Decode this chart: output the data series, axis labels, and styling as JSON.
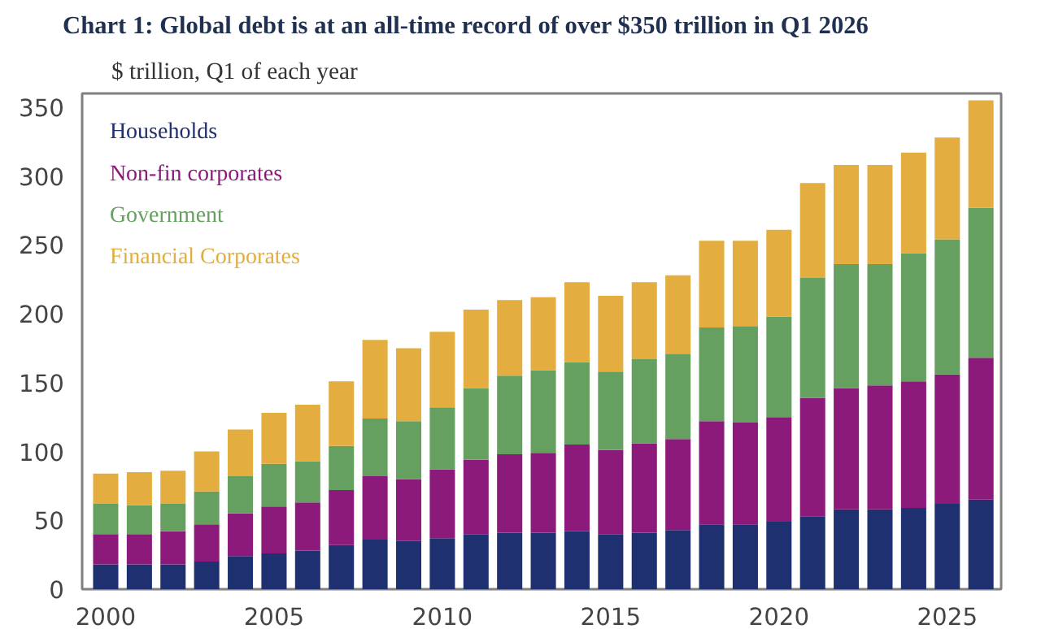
{
  "chart_data": {
    "type": "bar",
    "stacked": true,
    "title": "Chart 1: Global debt is at an all-time record of over $350 trillion in Q1 2026",
    "subtitle": "$ trillion, Q1 of each year",
    "x": [
      2000,
      2001,
      2002,
      2003,
      2004,
      2005,
      2006,
      2007,
      2008,
      2009,
      2010,
      2011,
      2012,
      2013,
      2014,
      2015,
      2016,
      2017,
      2018,
      2019,
      2020,
      2021,
      2022,
      2023,
      2024,
      2025,
      2026
    ],
    "series": [
      {
        "name": "Households",
        "color": "#1f3070",
        "values": [
          18,
          18,
          18,
          20,
          24,
          26,
          28,
          32,
          36,
          35,
          37,
          40,
          41,
          41,
          42,
          40,
          41,
          43,
          47,
          47,
          49,
          53,
          58,
          58,
          59,
          62,
          65
        ]
      },
      {
        "name": "Non-fin corporates",
        "color": "#8b1a7a",
        "values": [
          22,
          22,
          24,
          27,
          31,
          34,
          35,
          40,
          46,
          45,
          50,
          54,
          57,
          58,
          63,
          61,
          65,
          66,
          75,
          74,
          76,
          86,
          88,
          90,
          92,
          94,
          103
        ]
      },
      {
        "name": "Government",
        "color": "#66a060",
        "values": [
          22,
          21,
          20,
          24,
          27,
          31,
          30,
          32,
          42,
          42,
          45,
          52,
          57,
          60,
          60,
          57,
          61,
          62,
          68,
          70,
          73,
          87,
          90,
          88,
          93,
          98,
          109
        ]
      },
      {
        "name": "Financial Corporates",
        "color": "#e3ae3f",
        "values": [
          22,
          24,
          24,
          29,
          34,
          37,
          41,
          47,
          57,
          53,
          55,
          57,
          55,
          53,
          58,
          55,
          56,
          57,
          63,
          62,
          63,
          69,
          72,
          72,
          73,
          74,
          78
        ]
      }
    ],
    "xlim": [
      1999.3,
      2026.6
    ],
    "xticks": [
      2000,
      2005,
      2010,
      2015,
      2020,
      2025
    ],
    "ylim": [
      0,
      360
    ],
    "yticks": [
      0,
      50,
      100,
      150,
      200,
      250,
      300,
      350
    ],
    "grid": false,
    "legend": "top left"
  }
}
